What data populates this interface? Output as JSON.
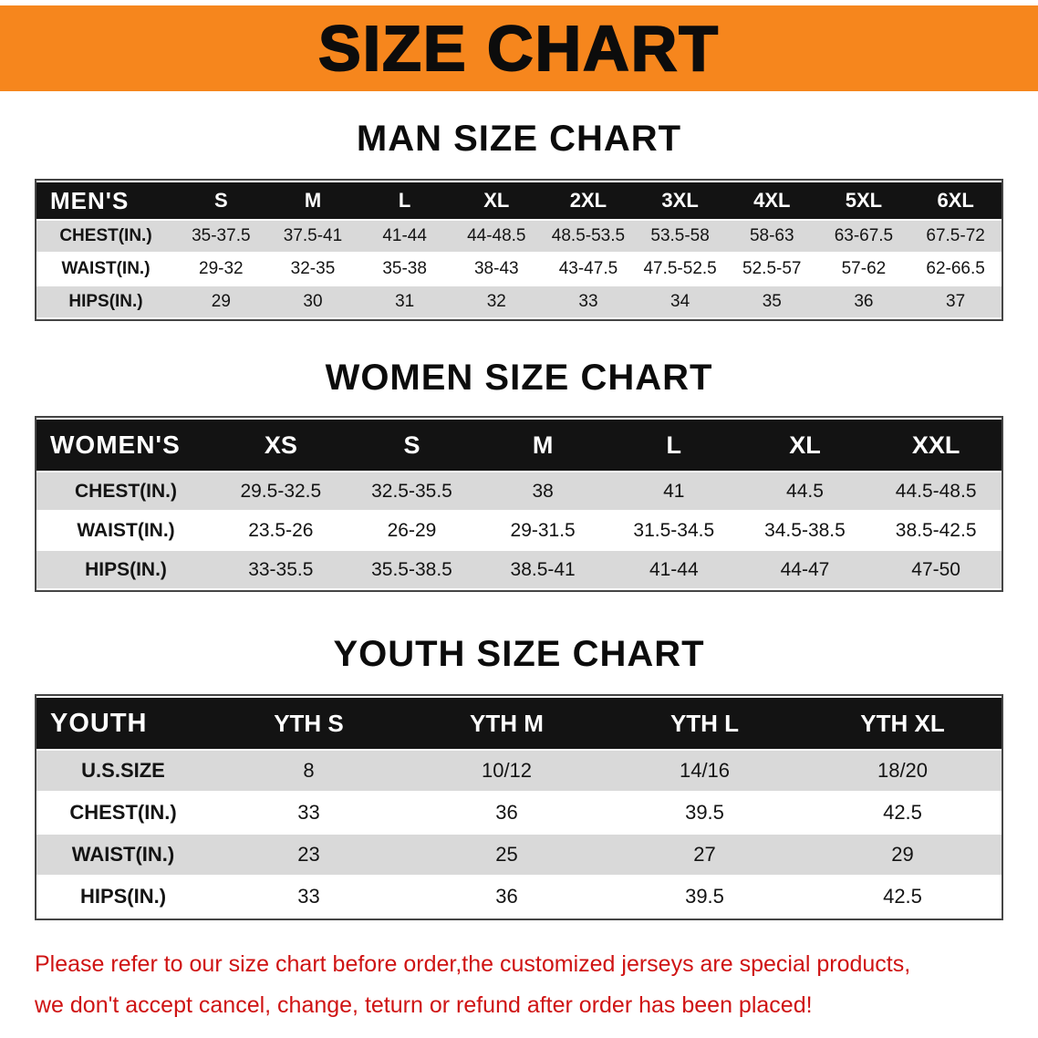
{
  "banner": {
    "title": "SIZE CHART"
  },
  "colors": {
    "banner_bg": "#f6861d",
    "header_bg": "#131313",
    "row_alt": "#d9d9d9",
    "table_border": "#454545",
    "disclaimer_red": "#cf1313"
  },
  "sections": [
    {
      "id": "men",
      "heading": "MAN SIZE CHART",
      "corner_label": "MEN'S",
      "columns": [
        "S",
        "M",
        "L",
        "XL",
        "2XL",
        "3XL",
        "4XL",
        "5XL",
        "6XL"
      ],
      "rows": [
        {
          "label": "CHEST(IN.)",
          "values": [
            "35-37.5",
            "37.5-41",
            "41-44",
            "44-48.5",
            "48.5-53.5",
            "53.5-58",
            "58-63",
            "63-67.5",
            "67.5-72"
          ]
        },
        {
          "label": "WAIST(IN.)",
          "values": [
            "29-32",
            "32-35",
            "35-38",
            "38-43",
            "43-47.5",
            "47.5-52.5",
            "52.5-57",
            "57-62",
            "62-66.5"
          ]
        },
        {
          "label": "HIPS(IN.)",
          "values": [
            "29",
            "30",
            "31",
            "32",
            "33",
            "34",
            "35",
            "36",
            "37"
          ]
        }
      ]
    },
    {
      "id": "women",
      "heading": "WOMEN SIZE CHART",
      "corner_label": "WOMEN'S",
      "columns": [
        "XS",
        "S",
        "M",
        "L",
        "XL",
        "XXL"
      ],
      "rows": [
        {
          "label": "CHEST(IN.)",
          "values": [
            "29.5-32.5",
            "32.5-35.5",
            "38",
            "41",
            "44.5",
            "44.5-48.5"
          ]
        },
        {
          "label": "WAIST(IN.)",
          "values": [
            "23.5-26",
            "26-29",
            "29-31.5",
            "31.5-34.5",
            "34.5-38.5",
            "38.5-42.5"
          ]
        },
        {
          "label": "HIPS(IN.)",
          "values": [
            "33-35.5",
            "35.5-38.5",
            "38.5-41",
            "41-44",
            "44-47",
            "47-50"
          ]
        }
      ]
    },
    {
      "id": "youth",
      "heading": "YOUTH SIZE CHART",
      "corner_label": "YOUTH",
      "columns": [
        "YTH S",
        "YTH M",
        "YTH L",
        "YTH XL"
      ],
      "rows": [
        {
          "label": "U.S.SIZE",
          "values": [
            "8",
            "10/12",
            "14/16",
            "18/20"
          ]
        },
        {
          "label": "CHEST(IN.)",
          "values": [
            "33",
            "36",
            "39.5",
            "42.5"
          ]
        },
        {
          "label": "WAIST(IN.)",
          "values": [
            "23",
            "25",
            "27",
            "29"
          ]
        },
        {
          "label": "HIPS(IN.)",
          "values": [
            "33",
            "36",
            "39.5",
            "42.5"
          ]
        }
      ]
    }
  ],
  "disclaimer": {
    "line1": "Please refer to our size chart before order,the customized jerseys are special products,",
    "line2": "we don't accept cancel, change, teturn or refund after order has been placed!"
  }
}
